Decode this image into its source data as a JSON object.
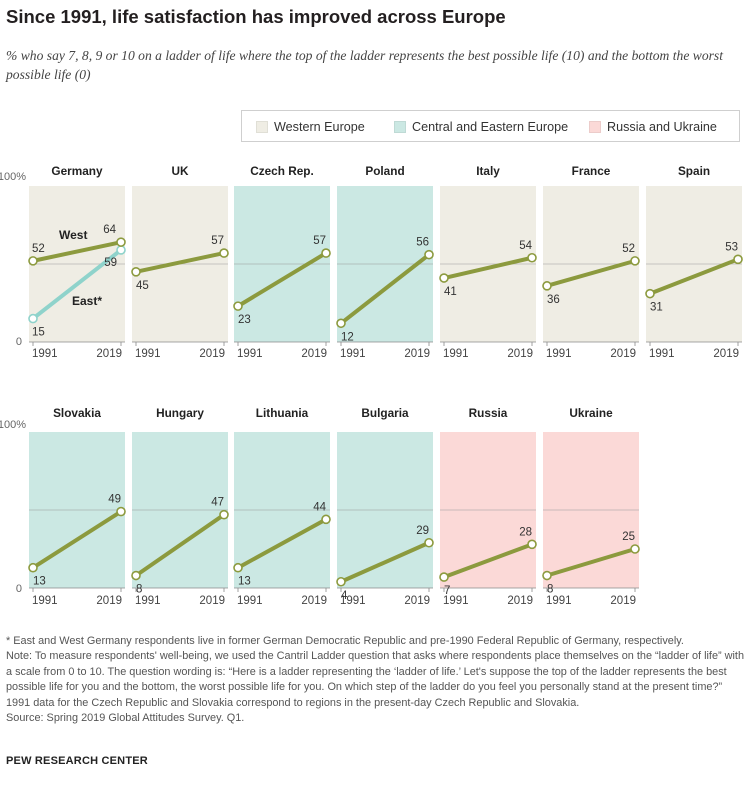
{
  "title": "Since 1991, life satisfaction has improved across Europe",
  "subtitle": "% who say 7, 8, 9 or 10 on a ladder of life where the top of the ladder represents the best possible life (10) and the bottom the worst possible life (0)",
  "legend": [
    {
      "label": "Western Europe",
      "region": "western",
      "color": "#efede4"
    },
    {
      "label": "Central and Eastern Europe",
      "region": "central",
      "color": "#cbe8e3"
    },
    {
      "label": "Russia and Ukraine",
      "region": "russia",
      "color": "#fbd9d7"
    }
  ],
  "colors": {
    "line": "#8c9a3e",
    "east": "#8fd3cb",
    "gridline": "#9a9a9a"
  },
  "chart_data": {
    "type": "line",
    "x": [
      "1991",
      "2019"
    ],
    "ylim": [
      0,
      100
    ],
    "y_ticks": [
      "100%",
      "0"
    ],
    "gridlines": [
      50
    ],
    "panels": [
      {
        "name": "Germany",
        "region": "western",
        "series": [
          {
            "name": "West",
            "values": [
              52,
              64
            ]
          },
          {
            "name": "East*",
            "values": [
              15,
              59
            ]
          }
        ]
      },
      {
        "name": "UK",
        "region": "western",
        "series": [
          {
            "values": [
              45,
              57
            ]
          }
        ]
      },
      {
        "name": "Czech Rep.",
        "region": "central",
        "series": [
          {
            "values": [
              23,
              57
            ]
          }
        ]
      },
      {
        "name": "Poland",
        "region": "central",
        "series": [
          {
            "values": [
              12,
              56
            ]
          }
        ]
      },
      {
        "name": "Italy",
        "region": "western",
        "series": [
          {
            "values": [
              41,
              54
            ]
          }
        ]
      },
      {
        "name": "France",
        "region": "western",
        "series": [
          {
            "values": [
              36,
              52
            ]
          }
        ]
      },
      {
        "name": "Spain",
        "region": "western",
        "series": [
          {
            "values": [
              31,
              53
            ]
          }
        ]
      },
      {
        "name": "Slovakia",
        "region": "central",
        "series": [
          {
            "values": [
              13,
              49
            ]
          }
        ]
      },
      {
        "name": "Hungary",
        "region": "central",
        "series": [
          {
            "values": [
              8,
              47
            ]
          }
        ]
      },
      {
        "name": "Lithuania",
        "region": "central",
        "series": [
          {
            "values": [
              13,
              44
            ]
          }
        ]
      },
      {
        "name": "Bulgaria",
        "region": "central",
        "series": [
          {
            "values": [
              4,
              29
            ]
          }
        ]
      },
      {
        "name": "Russia",
        "region": "russia",
        "series": [
          {
            "values": [
              7,
              28
            ]
          }
        ]
      },
      {
        "name": "Ukraine",
        "region": "russia",
        "series": [
          {
            "values": [
              8,
              25
            ]
          }
        ]
      }
    ]
  },
  "notes": [
    "* East and West Germany respondents live in former German Democratic Republic and pre-1990 Federal Republic of Germany, respectively.",
    "Note: To measure respondents' well-being, we used the Cantril Ladder question that asks where respondents place themselves on the “ladder of life” with a scale from 0 to 10. The question wording is: “Here is a ladder representing the ‘ladder of life.’ Let's suppose the top of the ladder represents the best possible life for you and the bottom, the worst possible life for you. On which step of the ladder do you feel you personally stand at the present time?” 1991 data for the Czech Republic and Slovakia correspond to regions in the present-day Czech Republic and Slovakia.",
    "Source: Spring 2019 Global Attitudes Survey. Q1."
  ],
  "brand": "PEW RESEARCH CENTER"
}
